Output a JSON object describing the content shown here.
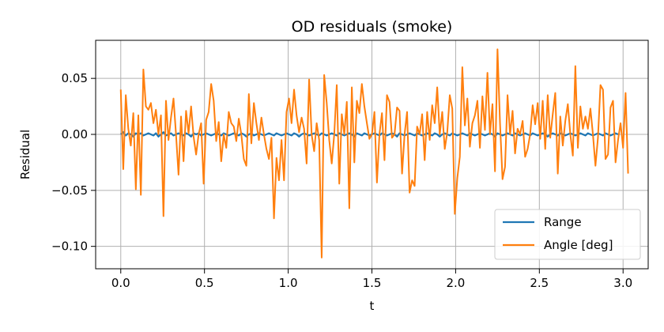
{
  "chart_data": {
    "type": "line",
    "title": "OD residuals (smoke)",
    "xlabel": "t",
    "ylabel": "Residual",
    "xlim": [
      -0.15,
      3.15
    ],
    "ylim": [
      -0.12,
      0.084
    ],
    "xticks": [
      0.0,
      0.5,
      1.0,
      1.5,
      2.0,
      2.5,
      3.0
    ],
    "xtick_labels": [
      "0.0",
      "0.5",
      "1.0",
      "1.5",
      "2.0",
      "2.5",
      "3.0"
    ],
    "yticks": [
      -0.1,
      -0.05,
      0.0,
      0.05
    ],
    "ytick_labels": [
      "−0.10",
      "−0.05",
      "0.00",
      "0.05"
    ],
    "grid": true,
    "legend_position": "lower-right",
    "series": [
      {
        "name": "Range",
        "color": "#1f77b4",
        "x_start": 0.0,
        "x_step": 0.015,
        "values": [
          0.0,
          0.002,
          -0.001,
          0.001,
          0.0,
          -0.002,
          0.001,
          0.0,
          0.001,
          -0.001,
          0.0,
          0.001,
          0.0,
          -0.001,
          0.001,
          -0.002,
          0.0,
          0.002,
          -0.001,
          0.0,
          0.001,
          -0.001,
          0.0,
          0.001,
          0.0,
          -0.001,
          0.001,
          0.0,
          -0.002,
          0.001,
          0.0,
          0.001,
          -0.001,
          0.0,
          0.001,
          0.0,
          -0.001,
          0.0,
          0.001,
          0.0,
          -0.001,
          0.001,
          0.0,
          -0.001,
          0.0,
          0.001,
          0.0,
          -0.001,
          0.001,
          0.0,
          -0.002,
          0.0,
          0.001,
          -0.001,
          0.0,
          0.001,
          0.0,
          -0.001,
          0.0,
          0.001,
          0.0,
          -0.001,
          0.001,
          0.0,
          -0.001,
          0.0,
          0.001,
          0.0,
          -0.001,
          0.001,
          0.0,
          -0.002,
          0.0,
          0.001,
          0.0,
          -0.001,
          0.0,
          0.001,
          0.0,
          -0.001,
          0.001,
          0.0,
          -0.001,
          0.0,
          0.001,
          0.0,
          -0.001,
          0.001,
          0.0,
          -0.001,
          0.0,
          0.001,
          0.0,
          -0.002,
          0.001,
          0.0,
          -0.001,
          0.001,
          0.0,
          -0.001,
          0.0,
          0.001,
          0.0,
          -0.001,
          0.001,
          0.0,
          -0.001,
          0.0,
          0.001,
          0.0,
          -0.002,
          0.001,
          0.0,
          -0.001,
          0.0,
          0.001,
          0.0,
          -0.001,
          0.001,
          0.0,
          -0.001,
          0.0,
          0.001,
          0.0,
          -0.001,
          0.001,
          0.0,
          -0.002,
          0.0,
          0.001,
          0.0,
          -0.001,
          0.001,
          0.0,
          -0.001,
          0.0,
          0.001,
          0.0,
          -0.001,
          0.001,
          0.0,
          -0.001,
          0.0,
          0.001,
          0.0,
          -0.001,
          0.0,
          0.001,
          0.0,
          -0.002,
          0.001,
          0.0,
          -0.001,
          0.0,
          0.001,
          0.0,
          -0.001,
          0.001,
          0.0,
          -0.001,
          0.0,
          0.001,
          0.0,
          -0.001,
          0.001,
          0.0,
          -0.001,
          0.0,
          0.001,
          0.0,
          -0.002,
          0.0,
          0.001,
          0.0,
          -0.001,
          0.001,
          0.0,
          -0.001,
          0.0,
          0.001,
          0.0,
          -0.001,
          0.0,
          0.001,
          0.0,
          -0.001,
          0.001,
          0.0,
          -0.001,
          0.0,
          0.001,
          0.0,
          -0.001,
          0.001,
          0.0,
          -0.001,
          0.0,
          0.001,
          0.0
        ]
      },
      {
        "name": "Angle [deg]",
        "color": "#ff7f0e",
        "x_start": 0.0,
        "x_step": 0.015,
        "values": [
          0.04,
          -0.031,
          0.035,
          0.005,
          -0.01,
          0.019,
          -0.049,
          0.017,
          -0.054,
          0.058,
          0.025,
          0.022,
          0.028,
          0.01,
          0.022,
          0.0,
          0.017,
          -0.073,
          0.03,
          -0.005,
          0.015,
          0.032,
          0.0,
          -0.036,
          0.016,
          -0.024,
          0.021,
          0.001,
          0.025,
          -0.002,
          -0.018,
          0.0,
          0.01,
          -0.044,
          0.013,
          0.02,
          0.045,
          0.03,
          -0.006,
          0.011,
          -0.024,
          0.0,
          -0.012,
          0.02,
          0.01,
          0.007,
          -0.006,
          0.014,
          0.0,
          -0.022,
          -0.028,
          0.036,
          -0.008,
          0.028,
          0.01,
          -0.005,
          0.015,
          0.0,
          -0.013,
          -0.022,
          -0.003,
          -0.075,
          -0.021,
          -0.041,
          -0.005,
          -0.041,
          0.02,
          0.032,
          0.01,
          0.04,
          0.017,
          0.002,
          0.015,
          0.005,
          -0.026,
          0.049,
          0.0,
          -0.015,
          0.01,
          -0.005,
          -0.11,
          0.053,
          0.028,
          -0.005,
          -0.026,
          0.0,
          0.044,
          -0.044,
          0.018,
          0.0,
          0.029,
          -0.066,
          0.042,
          -0.025,
          0.03,
          0.019,
          0.045,
          0.025,
          0.01,
          -0.004,
          0.0,
          0.02,
          -0.043,
          0.0,
          0.019,
          -0.023,
          0.035,
          0.029,
          -0.003,
          0.0,
          0.024,
          0.021,
          -0.035,
          0.0,
          0.02,
          -0.052,
          -0.041,
          -0.046,
          0.007,
          0.0,
          0.018,
          -0.023,
          0.02,
          -0.005,
          0.026,
          0.01,
          0.042,
          0.0,
          0.02,
          -0.013,
          0.002,
          0.035,
          0.023,
          -0.071,
          -0.039,
          -0.02,
          0.06,
          0.008,
          0.032,
          -0.011,
          0.01,
          0.017,
          0.03,
          -0.012,
          0.034,
          0.004,
          0.055,
          0.0,
          0.027,
          -0.033,
          0.076,
          0.01,
          -0.04,
          -0.029,
          0.035,
          0.0,
          0.021,
          -0.017,
          0.005,
          0.0,
          0.012,
          -0.02,
          -0.013,
          0.0,
          0.026,
          0.009,
          0.028,
          -0.004,
          0.03,
          -0.013,
          0.035,
          -0.003,
          0.018,
          0.037,
          -0.035,
          0.016,
          -0.01,
          0.012,
          0.027,
          0.0,
          -0.019,
          0.061,
          -0.012,
          0.025,
          0.005,
          0.016,
          0.005,
          0.023,
          0.0,
          -0.028,
          -0.003,
          0.044,
          0.04,
          -0.022,
          -0.018,
          0.024,
          0.03,
          -0.025,
          -0.005,
          0.01,
          -0.012,
          0.037,
          -0.035
        ]
      }
    ]
  }
}
